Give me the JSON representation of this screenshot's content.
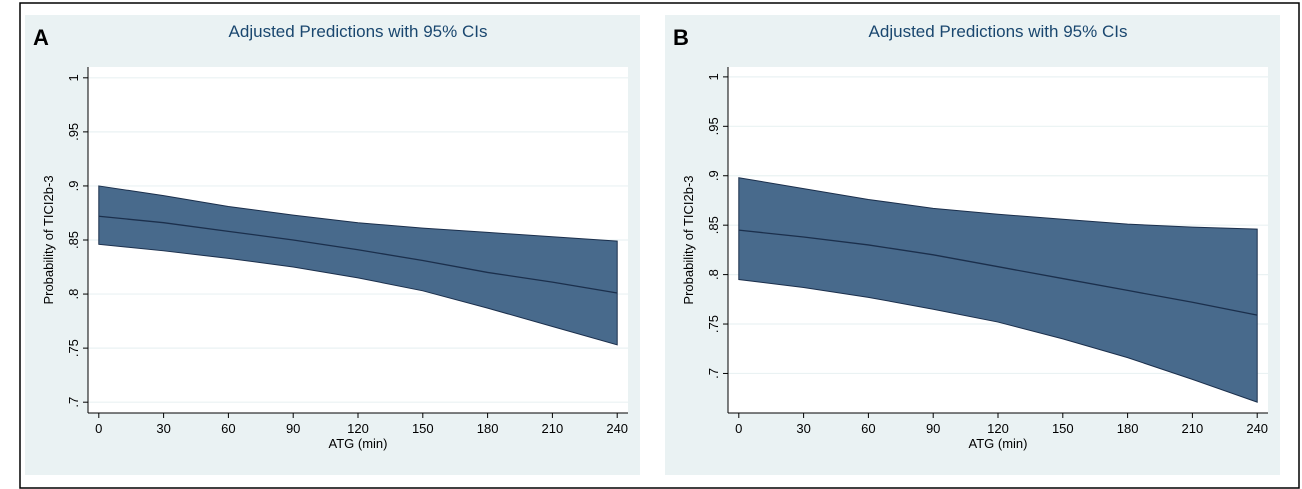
{
  "chart_data": [
    {
      "type": "band",
      "panel": "A",
      "title": "Adjusted Predictions with 95% CIs",
      "xlabel": "ATG (min)",
      "ylabel": "Probability of TICI2b-3",
      "x": [
        0,
        30,
        60,
        90,
        120,
        150,
        180,
        210,
        240
      ],
      "values": [
        0.872,
        0.866,
        0.858,
        0.85,
        0.841,
        0.831,
        0.82,
        0.811,
        0.801
      ],
      "upper": [
        0.9,
        0.891,
        0.881,
        0.873,
        0.866,
        0.861,
        0.857,
        0.853,
        0.849
      ],
      "lower": [
        0.846,
        0.84,
        0.833,
        0.825,
        0.815,
        0.803,
        0.787,
        0.77,
        0.753
      ],
      "color": "#486a8c",
      "line_color": "#1b2f4c",
      "xlim": [
        -5,
        245
      ],
      "xticks": [
        0,
        30,
        60,
        90,
        120,
        150,
        180,
        210,
        240
      ],
      "ylim": [
        0.69,
        1.01
      ],
      "yticks": [
        {
          "value": 0.7,
          "label": ".7"
        },
        {
          "value": 0.75,
          "label": ".75"
        },
        {
          "value": 0.8,
          "label": ".8"
        },
        {
          "value": 0.85,
          "label": ".85"
        },
        {
          "value": 0.9,
          "label": ".9"
        },
        {
          "value": 0.95,
          "label": ".95"
        },
        1
      ],
      "grid": true
    },
    {
      "type": "band",
      "panel": "B",
      "title": "Adjusted Predictions with 95% CIs",
      "xlabel": "ATG (min)",
      "ylabel": "Probability of TICI2b-3",
      "x": [
        0,
        30,
        60,
        90,
        120,
        150,
        180,
        210,
        240
      ],
      "values": [
        0.845,
        0.838,
        0.83,
        0.82,
        0.808,
        0.796,
        0.784,
        0.772,
        0.759
      ],
      "upper": [
        0.898,
        0.887,
        0.876,
        0.867,
        0.861,
        0.856,
        0.851,
        0.848,
        0.846
      ],
      "lower": [
        0.795,
        0.787,
        0.777,
        0.765,
        0.752,
        0.735,
        0.716,
        0.694,
        0.671
      ],
      "color": "#486a8c",
      "line_color": "#1b2f4c",
      "xlim": [
        -5,
        245
      ],
      "xticks": [
        0,
        30,
        60,
        90,
        120,
        150,
        180,
        210,
        240
      ],
      "ylim": [
        0.66,
        1.01
      ],
      "yticks": [
        {
          "value": 0.7,
          "label": ".7"
        },
        {
          "value": 0.75,
          "label": ".75"
        },
        {
          "value": 0.8,
          "label": ".8"
        },
        {
          "value": 0.85,
          "label": ".85"
        },
        {
          "value": 0.9,
          "label": ".9"
        },
        {
          "value": 0.95,
          "label": ".95"
        },
        1
      ],
      "grid": true
    }
  ]
}
